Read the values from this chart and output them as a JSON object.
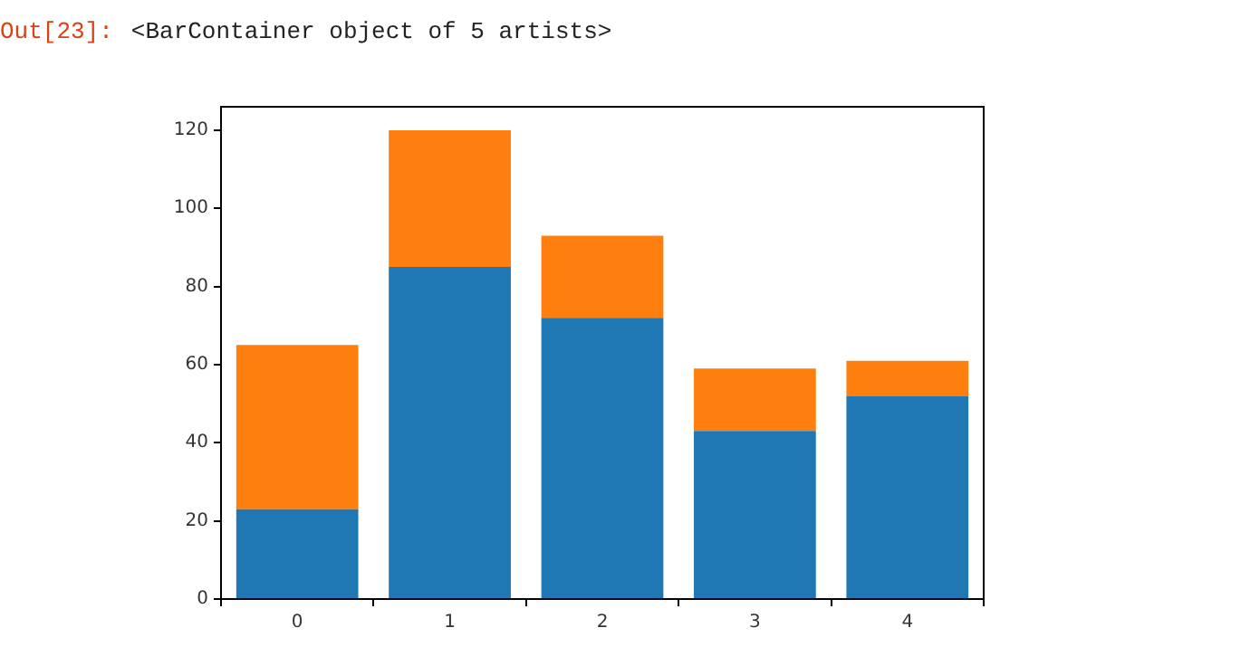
{
  "chart_data": {
    "type": "bar",
    "annotations": [
      "Out[23]:",
      "<BarContainer object of 5 artists>"
    ],
    "categories": [
      "0",
      "1",
      "2",
      "3",
      "4"
    ],
    "stacked": true,
    "series": [
      {
        "color": "#1f77b4",
        "values": [
          23,
          85,
          72,
          43,
          52
        ]
      },
      {
        "color": "#ff7f0e",
        "values": [
          42,
          35,
          21,
          16,
          9
        ]
      }
    ],
    "ylim": [
      0,
      126
    ],
    "yticks": [
      0,
      20,
      40,
      60,
      80,
      100,
      120
    ],
    "grid": false
  }
}
